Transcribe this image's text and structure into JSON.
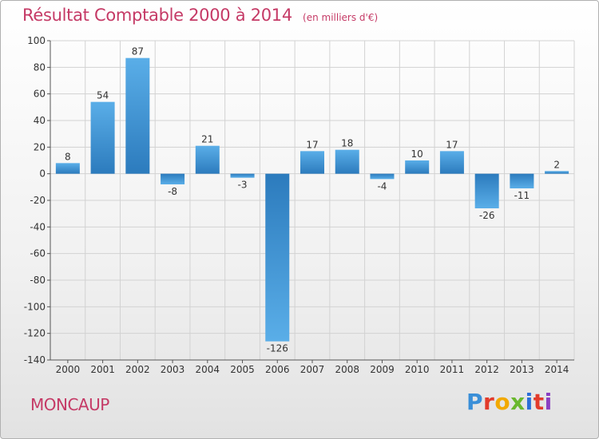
{
  "header": {
    "title": "Résultat Comptable 2000 à 2014",
    "subtitle": "(en milliers d'€)"
  },
  "footer": {
    "commune": "MONCAUP",
    "logo_letters": [
      "P",
      "r",
      "o",
      "x",
      "i",
      "t",
      "i"
    ],
    "logo_colors": [
      "#3a8fd8",
      "#e23b2b",
      "#f2a900",
      "#6ab82e",
      "#2b6fd8",
      "#e23b2b",
      "#8a3fc2"
    ]
  },
  "chart_data": {
    "type": "bar",
    "title": "Résultat Comptable 2000 à 2014",
    "subtitle": "(en milliers d'€)",
    "categories": [
      "2000",
      "2001",
      "2002",
      "2003",
      "2004",
      "2005",
      "2006",
      "2007",
      "2008",
      "2009",
      "2010",
      "2011",
      "2012",
      "2013",
      "2014"
    ],
    "values": [
      8,
      54,
      87,
      -8,
      21,
      -3,
      -126,
      17,
      18,
      -4,
      10,
      17,
      -26,
      -11,
      2
    ],
    "data_labels": [
      "8",
      "54",
      "87",
      "-8",
      "21",
      "-3",
      "-126",
      "17",
      "18",
      "-4",
      "10",
      "17",
      "-26",
      "-11",
      "2"
    ],
    "ylim": [
      -140,
      100
    ],
    "yticks": [
      100,
      80,
      60,
      40,
      20,
      0,
      -20,
      -40,
      -60,
      -80,
      -100,
      -120,
      -140
    ],
    "grid": true,
    "bar_color_top": "#5aaee8",
    "bar_color_bottom": "#2c7bbd"
  }
}
